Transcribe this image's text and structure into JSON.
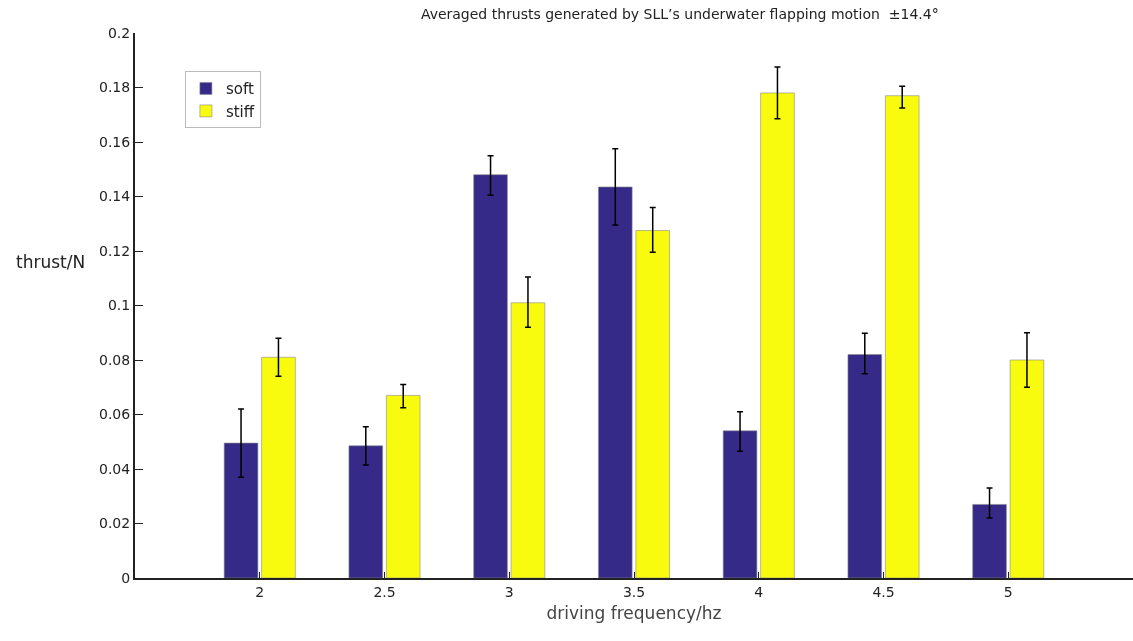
{
  "chart_data": {
    "type": "bar",
    "title": "Averaged thrusts generated by SLL’s underwater flapping motion  ±14.4°",
    "xlabel": "driving frequency/hz",
    "ylabel": "thrust/N",
    "x": [
      2,
      2.5,
      3,
      3.5,
      4,
      4.5,
      5
    ],
    "series": [
      {
        "name": "soft",
        "color": "#352a87",
        "values": [
          0.0495,
          0.0485,
          0.148,
          0.1435,
          0.054,
          0.082,
          0.027
        ],
        "errors": [
          [
            0.037,
            0.062
          ],
          [
            0.0415,
            0.0555
          ],
          [
            0.1405,
            0.155
          ],
          [
            0.1295,
            0.1575
          ],
          [
            0.0465,
            0.061
          ],
          [
            0.075,
            0.0898
          ],
          [
            0.022,
            0.033
          ]
        ]
      },
      {
        "name": "stiff",
        "color": "#f9fb0e",
        "values": [
          0.081,
          0.067,
          0.101,
          0.1275,
          0.178,
          0.177,
          0.08
        ],
        "errors": [
          [
            0.074,
            0.088
          ],
          [
            0.0625,
            0.071
          ],
          [
            0.092,
            0.1105
          ],
          [
            0.1195,
            0.136
          ],
          [
            0.1685,
            0.1875
          ],
          [
            0.1725,
            0.1805
          ],
          [
            0.07,
            0.09
          ]
        ]
      }
    ],
    "xlim": [
      1.5,
      5.5
    ],
    "xticks": [
      2,
      2.5,
      3,
      3.5,
      4,
      4.5,
      5
    ],
    "ylim": [
      0,
      0.2
    ],
    "yticks": [
      0,
      0.02,
      0.04,
      0.06,
      0.08,
      0.1,
      0.12,
      0.14,
      0.16,
      0.18,
      0.2
    ],
    "legend": "top left"
  }
}
